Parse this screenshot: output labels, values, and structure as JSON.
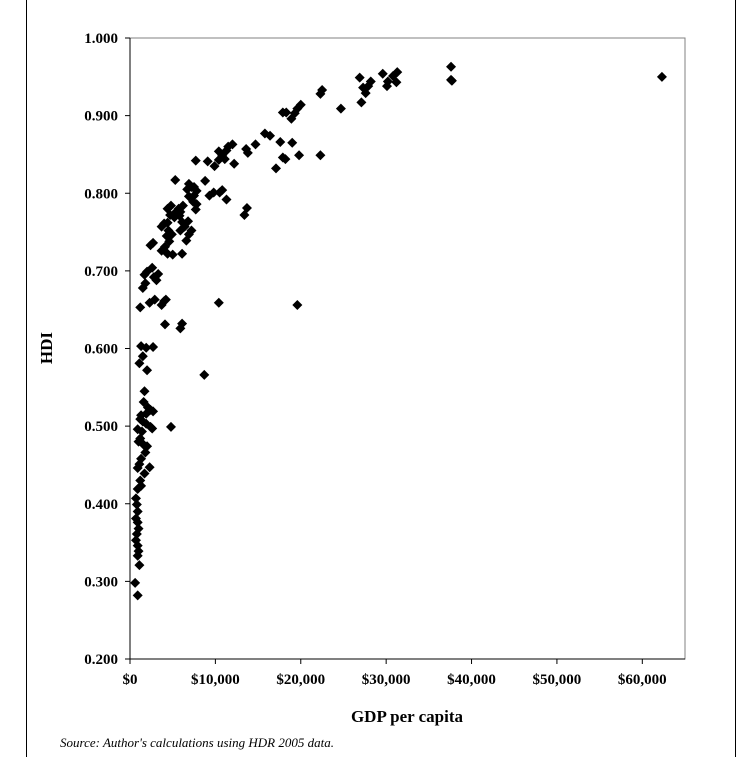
{
  "chart_data": {
    "type": "scatter",
    "title": "",
    "xlabel": "GDP per capita",
    "ylabel": "HDI",
    "xlim": [
      0,
      65000
    ],
    "ylim": [
      0.2,
      1.0
    ],
    "x_ticks": [
      0,
      10000,
      20000,
      30000,
      40000,
      50000,
      60000
    ],
    "x_tick_labels": [
      "$0",
      "$10,000",
      "$20,000",
      "$30,000",
      "$40,000",
      "$50,000",
      "$60,000"
    ],
    "y_ticks": [
      0.2,
      0.3,
      0.4,
      0.5,
      0.6,
      0.7,
      0.8,
      0.9,
      1.0
    ],
    "y_tick_labels": [
      "0.200",
      "0.300",
      "0.400",
      "0.500",
      "0.600",
      "0.700",
      "0.800",
      "0.900",
      "1.000"
    ],
    "grid": false,
    "legend": "none",
    "marker": "diamond",
    "marker_color": "#000000",
    "points": [
      [
        62300,
        0.95
      ],
      [
        37600,
        0.963
      ],
      [
        37600,
        0.946
      ],
      [
        37700,
        0.945
      ],
      [
        31300,
        0.956
      ],
      [
        30800,
        0.951
      ],
      [
        31200,
        0.943
      ],
      [
        30200,
        0.944
      ],
      [
        29600,
        0.954
      ],
      [
        30100,
        0.938
      ],
      [
        28200,
        0.944
      ],
      [
        27900,
        0.938
      ],
      [
        27300,
        0.936
      ],
      [
        27600,
        0.929
      ],
      [
        26900,
        0.949
      ],
      [
        27100,
        0.917
      ],
      [
        22500,
        0.933
      ],
      [
        22300,
        0.928
      ],
      [
        22300,
        0.849
      ],
      [
        24700,
        0.909
      ],
      [
        20000,
        0.914
      ],
      [
        19600,
        0.909
      ],
      [
        19300,
        0.903
      ],
      [
        18900,
        0.896
      ],
      [
        19000,
        0.865
      ],
      [
        19800,
        0.849
      ],
      [
        19600,
        0.656
      ],
      [
        18300,
        0.904
      ],
      [
        17900,
        0.904
      ],
      [
        17600,
        0.866
      ],
      [
        17900,
        0.846
      ],
      [
        18200,
        0.844
      ],
      [
        17100,
        0.832
      ],
      [
        16400,
        0.874
      ],
      [
        15800,
        0.877
      ],
      [
        14700,
        0.863
      ],
      [
        13800,
        0.852
      ],
      [
        13600,
        0.857
      ],
      [
        13700,
        0.781
      ],
      [
        13400,
        0.772
      ],
      [
        12000,
        0.863
      ],
      [
        11500,
        0.86
      ],
      [
        11300,
        0.855
      ],
      [
        10800,
        0.849
      ],
      [
        10400,
        0.843
      ],
      [
        11100,
        0.844
      ],
      [
        10400,
        0.854
      ],
      [
        9900,
        0.835
      ],
      [
        9100,
        0.841
      ],
      [
        8800,
        0.816
      ],
      [
        9800,
        0.801
      ],
      [
        10500,
        0.801
      ],
      [
        10800,
        0.804
      ],
      [
        11300,
        0.792
      ],
      [
        9300,
        0.797
      ],
      [
        10400,
        0.659
      ],
      [
        12200,
        0.838
      ],
      [
        7700,
        0.842
      ],
      [
        7500,
        0.808
      ],
      [
        7800,
        0.803
      ],
      [
        7200,
        0.808
      ],
      [
        6900,
        0.812
      ],
      [
        6700,
        0.805
      ],
      [
        7500,
        0.797
      ],
      [
        7800,
        0.786
      ],
      [
        7400,
        0.789
      ],
      [
        6900,
        0.796
      ],
      [
        7700,
        0.779
      ],
      [
        8700,
        0.566
      ],
      [
        6200,
        0.784
      ],
      [
        5700,
        0.78
      ],
      [
        5900,
        0.776
      ],
      [
        5400,
        0.776
      ],
      [
        5800,
        0.771
      ],
      [
        5200,
        0.769
      ],
      [
        6100,
        0.763
      ],
      [
        6400,
        0.757
      ],
      [
        5900,
        0.752
      ],
      [
        6800,
        0.764
      ],
      [
        6900,
        0.747
      ],
      [
        7200,
        0.752
      ],
      [
        6600,
        0.739
      ],
      [
        6100,
        0.722
      ],
      [
        5300,
        0.817
      ],
      [
        6100,
        0.632
      ],
      [
        5900,
        0.626
      ],
      [
        4800,
        0.784
      ],
      [
        4400,
        0.78
      ],
      [
        4700,
        0.772
      ],
      [
        4400,
        0.762
      ],
      [
        4500,
        0.752
      ],
      [
        4900,
        0.747
      ],
      [
        4000,
        0.761
      ],
      [
        3700,
        0.757
      ],
      [
        4300,
        0.745
      ],
      [
        4600,
        0.738
      ],
      [
        4100,
        0.731
      ],
      [
        3700,
        0.726
      ],
      [
        4400,
        0.722
      ],
      [
        5000,
        0.721
      ],
      [
        4200,
        0.663
      ],
      [
        4000,
        0.661
      ],
      [
        3700,
        0.656
      ],
      [
        4100,
        0.631
      ],
      [
        4800,
        0.499
      ],
      [
        3300,
        0.696
      ],
      [
        3100,
        0.688
      ],
      [
        2800,
        0.692
      ],
      [
        2600,
        0.704
      ],
      [
        2400,
        0.733
      ],
      [
        2700,
        0.736
      ],
      [
        2000,
        0.699
      ],
      [
        1700,
        0.695
      ],
      [
        1800,
        0.684
      ],
      [
        1500,
        0.678
      ],
      [
        1200,
        0.653
      ],
      [
        2300,
        0.659
      ],
      [
        2900,
        0.663
      ],
      [
        2700,
        0.602
      ],
      [
        1900,
        0.601
      ],
      [
        1300,
        0.603
      ],
      [
        1500,
        0.59
      ],
      [
        2000,
        0.572
      ],
      [
        1100,
        0.581
      ],
      [
        1700,
        0.545
      ],
      [
        1600,
        0.531
      ],
      [
        2100,
        0.524
      ],
      [
        2400,
        0.521
      ],
      [
        2700,
        0.519
      ],
      [
        1900,
        0.516
      ],
      [
        1300,
        0.514
      ],
      [
        1200,
        0.509
      ],
      [
        1500,
        0.506
      ],
      [
        1900,
        0.503
      ],
      [
        2400,
        0.499
      ],
      [
        2600,
        0.497
      ],
      [
        900,
        0.496
      ],
      [
        1400,
        0.493
      ],
      [
        1200,
        0.484
      ],
      [
        1000,
        0.48
      ],
      [
        1600,
        0.476
      ],
      [
        2000,
        0.474
      ],
      [
        1800,
        0.466
      ],
      [
        1300,
        0.458
      ],
      [
        1100,
        0.451
      ],
      [
        900,
        0.446
      ],
      [
        2300,
        0.447
      ],
      [
        1700,
        0.439
      ],
      [
        1200,
        0.43
      ],
      [
        1300,
        0.423
      ],
      [
        900,
        0.419
      ],
      [
        700,
        0.407
      ],
      [
        800,
        0.399
      ],
      [
        900,
        0.39
      ],
      [
        700,
        0.381
      ],
      [
        900,
        0.376
      ],
      [
        1000,
        0.368
      ],
      [
        800,
        0.361
      ],
      [
        700,
        0.353
      ],
      [
        900,
        0.346
      ],
      [
        1000,
        0.339
      ],
      [
        900,
        0.333
      ],
      [
        1100,
        0.321
      ],
      [
        600,
        0.298
      ],
      [
        900,
        0.282
      ]
    ],
    "source_note": "Source: Author's calculations using HDR 2005 data."
  }
}
